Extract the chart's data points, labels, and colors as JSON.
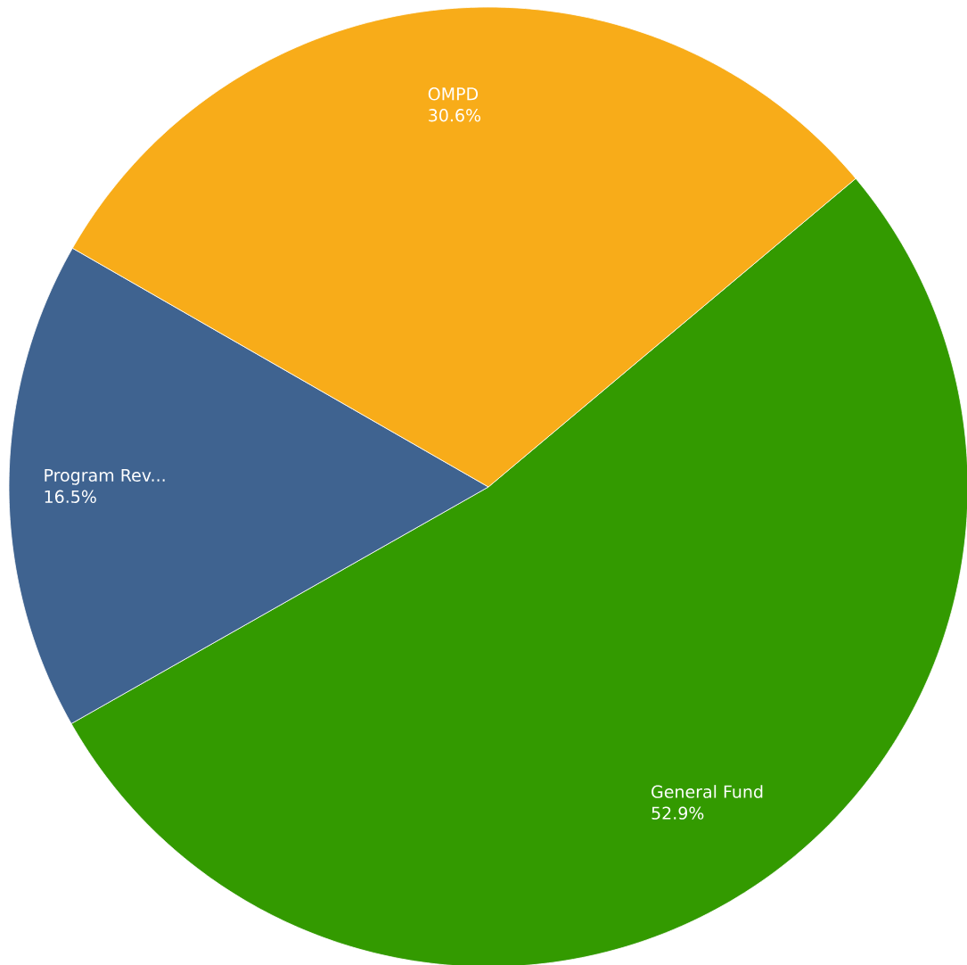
{
  "chart_data": {
    "type": "pie",
    "categories": [
      "General Fund",
      "Program Rev...",
      "OMPD"
    ],
    "values": [
      52.9,
      16.5,
      30.6
    ],
    "colors": [
      "#339a00",
      "#3f6390",
      "#f8ac19"
    ],
    "value_labels": [
      "52.9%",
      "16.5%",
      "30.6%"
    ]
  }
}
